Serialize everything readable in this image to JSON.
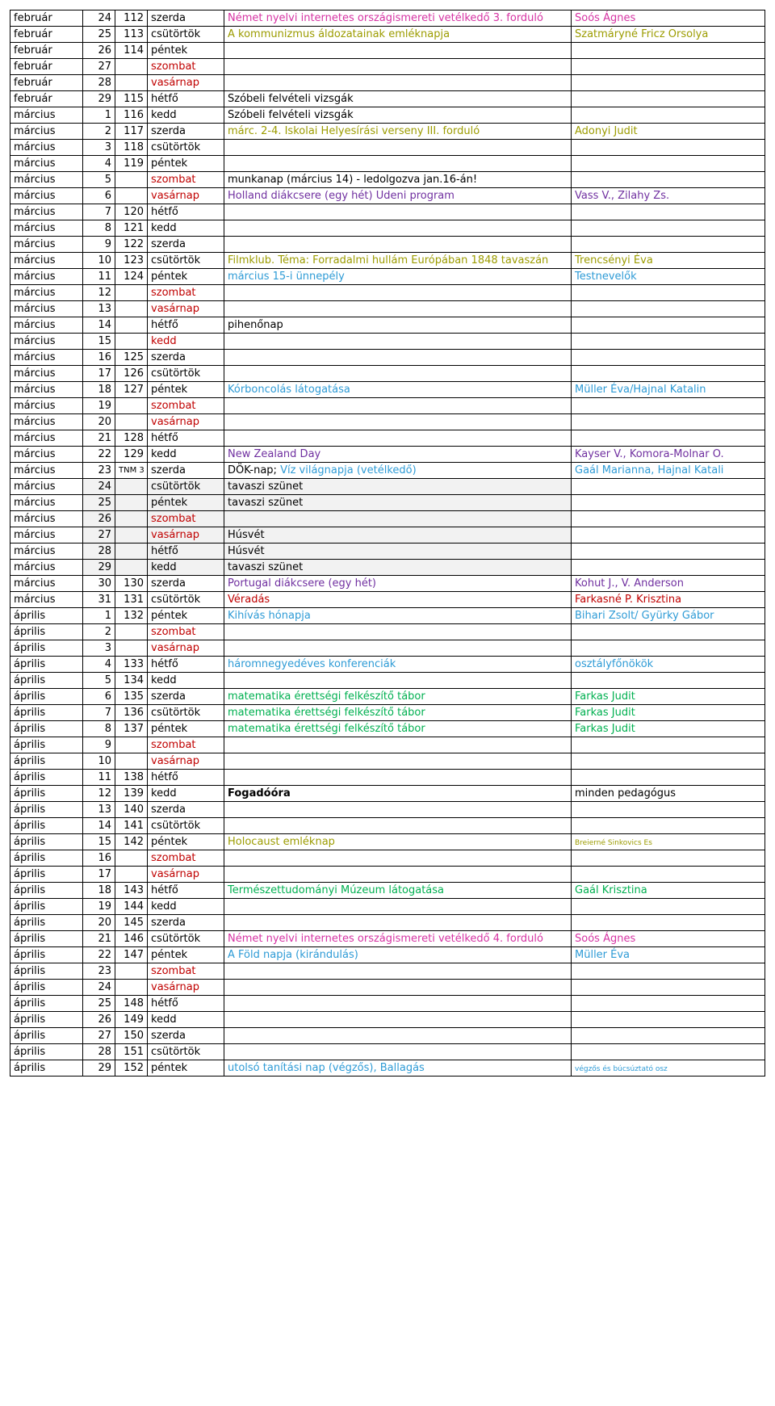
{
  "rows": [
    {
      "month": "február",
      "day": "24",
      "num": "112",
      "wd": "szerda",
      "ev": [
        {
          "t": "Német nyelvi internetes országismereti vetélkedő 3. forduló",
          "c": "magenta"
        }
      ],
      "pr": [
        {
          "t": "Soós Ágnes",
          "c": "magenta"
        }
      ]
    },
    {
      "month": "február",
      "day": "25",
      "num": "113",
      "wd": "csütörtök",
      "ev": [
        {
          "t": "A kommunizmus áldozatainak emléknapja",
          "c": "olive"
        }
      ],
      "pr": [
        {
          "t": "Szatmáryné Fricz Orsolya",
          "c": "olive"
        }
      ]
    },
    {
      "month": "február",
      "day": "26",
      "num": "114",
      "wd": "péntek"
    },
    {
      "month": "február",
      "day": "27",
      "wd": "szombat",
      "wc": "red"
    },
    {
      "month": "február",
      "day": "28",
      "wd": "vasárnap",
      "wc": "red"
    },
    {
      "month": "február",
      "day": "29",
      "num": "115",
      "wd": "hétfő",
      "ev": [
        {
          "t": "Szóbeli felvételi vizsgák"
        }
      ]
    },
    {
      "month": "március",
      "day": "1",
      "num": "116",
      "wd": "kedd",
      "ev": [
        {
          "t": "Szóbeli felvételi vizsgák"
        }
      ]
    },
    {
      "month": "március",
      "day": "2",
      "num": "117",
      "wd": "szerda",
      "ev": [
        {
          "t": "márc. 2-4. Iskolai Helyesírási verseny III. forduló",
          "c": "olive"
        }
      ],
      "pr": [
        {
          "t": "Adonyi Judit",
          "c": "olive"
        }
      ]
    },
    {
      "month": "március",
      "day": "3",
      "num": "118",
      "wd": "csütörtök"
    },
    {
      "month": "március",
      "day": "4",
      "num": "119",
      "wd": "péntek"
    },
    {
      "month": "március",
      "day": "5",
      "wd": "szombat",
      "wc": "red",
      "ev": [
        {
          "t": "munkanap (március 14) - ledolgozva jan.16-án!"
        }
      ]
    },
    {
      "month": "március",
      "day": "6",
      "wd": "vasárnap",
      "wc": "red",
      "ev": [
        {
          "t": "Holland diákcsere (egy hét) Udeni program",
          "c": "purple"
        }
      ],
      "pr": [
        {
          "t": "Vass V., Zilahy Zs.",
          "c": "purple"
        }
      ]
    },
    {
      "month": "március",
      "day": "7",
      "num": "120",
      "wd": "hétfő"
    },
    {
      "month": "március",
      "day": "8",
      "num": "121",
      "wd": "kedd"
    },
    {
      "month": "március",
      "day": "9",
      "num": "122",
      "wd": "szerda"
    },
    {
      "month": "március",
      "day": "10",
      "num": "123",
      "wd": "csütörtök",
      "ev": [
        {
          "t": "Filmklub. Téma: Forradalmi hullám Európában 1848 tavaszán",
          "c": "olive"
        }
      ],
      "pr": [
        {
          "t": "Trencsényi  Éva",
          "c": "olive"
        }
      ]
    },
    {
      "month": "március",
      "day": "11",
      "num": "124",
      "wd": "péntek",
      "ev": [
        {
          "t": "március 15-i ünnepély",
          "c": "blue"
        }
      ],
      "pr": [
        {
          "t": "Testnevelők",
          "c": "blue"
        }
      ]
    },
    {
      "month": "március",
      "day": "12",
      "wd": "szombat",
      "wc": "red"
    },
    {
      "month": "március",
      "day": "13",
      "wd": "vasárnap",
      "wc": "red"
    },
    {
      "month": "március",
      "day": "14",
      "wd": "hétfő",
      "ev": [
        {
          "t": "pihenőnap"
        }
      ]
    },
    {
      "month": "március",
      "day": "15",
      "wd": "kedd",
      "wc": "red"
    },
    {
      "month": "március",
      "day": "16",
      "num": "125",
      "wd": "szerda"
    },
    {
      "month": "március",
      "day": "17",
      "num": "126",
      "wd": "csütörtök"
    },
    {
      "month": "március",
      "day": "18",
      "num": "127",
      "wd": "péntek",
      "ev": [
        {
          "t": "Kórboncolás látogatása",
          "c": "blue"
        }
      ],
      "pr": [
        {
          "t": "Müller Éva/Hajnal Katalin",
          "c": "blue"
        }
      ]
    },
    {
      "month": "március",
      "day": "19",
      "wd": "szombat",
      "wc": "red"
    },
    {
      "month": "március",
      "day": "20",
      "wd": "vasárnap",
      "wc": "red"
    },
    {
      "month": "március",
      "day": "21",
      "num": "128",
      "wd": "hétfő"
    },
    {
      "month": "március",
      "day": "22",
      "num": "129",
      "wd": "kedd",
      "ev": [
        {
          "t": "New Zealand Day",
          "c": "purple"
        }
      ],
      "pr": [
        {
          "t": "Kayser V., Komora-Molnar O.",
          "c": "purple"
        }
      ]
    },
    {
      "month": "március",
      "day": "23",
      "numText": "TNM 3",
      "wd": "szerda",
      "ev": [
        {
          "t": "DÖK-nap; "
        },
        {
          "t": "Víz világnapja (vetélkedő)",
          "c": "blue"
        }
      ],
      "pr": [
        {
          "t": "Gaál Marianna, Hajnal Katali",
          "c": "blue"
        }
      ]
    },
    {
      "month": "március",
      "day": "24",
      "wd": "csütörtök",
      "ev": [
        {
          "t": "tavaszi szünet"
        }
      ],
      "shade": true
    },
    {
      "month": "március",
      "day": "25",
      "wd": "péntek",
      "ev": [
        {
          "t": "tavaszi szünet"
        }
      ],
      "shade": true
    },
    {
      "month": "március",
      "day": "26",
      "wd": "szombat",
      "wc": "red",
      "shade": true
    },
    {
      "month": "március",
      "day": "27",
      "wd": "vasárnap",
      "wc": "red",
      "ev": [
        {
          "t": "Húsvét"
        }
      ],
      "shade": true
    },
    {
      "month": "március",
      "day": "28",
      "wd": "hétfő",
      "ev": [
        {
          "t": "Húsvét"
        }
      ],
      "shade": true
    },
    {
      "month": "március",
      "day": "29",
      "wd": "kedd",
      "ev": [
        {
          "t": "tavaszi szünet"
        }
      ],
      "shade": true
    },
    {
      "month": "március",
      "day": "30",
      "num": "130",
      "wd": "szerda",
      "ev": [
        {
          "t": "Portugal diákcsere (egy hét)",
          "c": "purple"
        }
      ],
      "pr": [
        {
          "t": "Kohut J., V. Anderson",
          "c": "purple"
        }
      ]
    },
    {
      "month": "március",
      "day": "31",
      "num": "131",
      "wd": "csütörtök",
      "ev": [
        {
          "t": "Véradás",
          "c": "red"
        }
      ],
      "pr": [
        {
          "t": "Farkasné P. Krisztina",
          "c": "red"
        }
      ]
    },
    {
      "month": "április",
      "day": "1",
      "num": "132",
      "wd": "péntek",
      "ev": [
        {
          "t": "Kihívás hónapja",
          "c": "blue"
        }
      ],
      "pr": [
        {
          "t": "Bihari Zsolt/ Gyürky Gábor",
          "c": "blue"
        }
      ]
    },
    {
      "month": "április",
      "day": "2",
      "wd": "szombat",
      "wc": "red"
    },
    {
      "month": "április",
      "day": "3",
      "wd": "vasárnap",
      "wc": "red"
    },
    {
      "month": "április",
      "day": "4",
      "num": "133",
      "wd": "hétfő",
      "ev": [
        {
          "t": "háromnegyedéves konferenciák",
          "c": "blue"
        }
      ],
      "pr": [
        {
          "t": "osztályfőnökök",
          "c": "blue"
        }
      ]
    },
    {
      "month": "április",
      "day": "5",
      "num": "134",
      "wd": "kedd"
    },
    {
      "month": "április",
      "day": "6",
      "num": "135",
      "wd": "szerda",
      "ev": [
        {
          "t": "matematika érettségi felkészítő tábor",
          "c": "green"
        }
      ],
      "pr": [
        {
          "t": "Farkas Judit",
          "c": "green"
        }
      ]
    },
    {
      "month": "április",
      "day": "7",
      "num": "136",
      "wd": "csütörtök",
      "ev": [
        {
          "t": "matematika érettségi felkészítő tábor",
          "c": "green"
        }
      ],
      "pr": [
        {
          "t": "Farkas Judit",
          "c": "green"
        }
      ]
    },
    {
      "month": "április",
      "day": "8",
      "num": "137",
      "wd": "péntek",
      "ev": [
        {
          "t": "matematika érettségi felkészítő tábor",
          "c": "green"
        }
      ],
      "pr": [
        {
          "t": "Farkas Judit",
          "c": "green"
        }
      ]
    },
    {
      "month": "április",
      "day": "9",
      "wd": "szombat",
      "wc": "red"
    },
    {
      "month": "április",
      "day": "10",
      "wd": "vasárnap",
      "wc": "red"
    },
    {
      "month": "április",
      "day": "11",
      "num": "138",
      "wd": "hétfő"
    },
    {
      "month": "április",
      "day": "12",
      "num": "139",
      "wd": "kedd",
      "ev": [
        {
          "t": "Fogadóóra",
          "c": "bold"
        }
      ],
      "pr": [
        {
          "t": "minden pedagógus"
        }
      ]
    },
    {
      "month": "április",
      "day": "13",
      "num": "140",
      "wd": "szerda"
    },
    {
      "month": "április",
      "day": "14",
      "num": "141",
      "wd": "csütörtök"
    },
    {
      "month": "április",
      "day": "15",
      "num": "142",
      "wd": "péntek",
      "ev": [
        {
          "t": "Holocaust emléknap",
          "c": "olive"
        }
      ],
      "pr": [
        {
          "t": "Breierné Sinkovics Es",
          "c": "olive",
          "sz": "tiny"
        }
      ]
    },
    {
      "month": "április",
      "day": "16",
      "wd": "szombat",
      "wc": "red"
    },
    {
      "month": "április",
      "day": "17",
      "wd": "vasárnap",
      "wc": "red"
    },
    {
      "month": "április",
      "day": "18",
      "num": "143",
      "wd": "hétfő",
      "ev": [
        {
          "t": "Természettudományi Múzeum látogatása",
          "c": "green"
        }
      ],
      "pr": [
        {
          "t": "Gaál Krisztina",
          "c": "green"
        }
      ]
    },
    {
      "month": "április",
      "day": "19",
      "num": "144",
      "wd": "kedd"
    },
    {
      "month": "április",
      "day": "20",
      "num": "145",
      "wd": "szerda"
    },
    {
      "month": "április",
      "day": "21",
      "num": "146",
      "wd": "csütörtök",
      "ev": [
        {
          "t": "Német nyelvi internetes országismereti vetélkedő 4. forduló",
          "c": "magenta"
        }
      ],
      "pr": [
        {
          "t": "Soós Ágnes",
          "c": "magenta"
        }
      ]
    },
    {
      "month": "április",
      "day": "22",
      "num": "147",
      "wd": "péntek",
      "ev": [
        {
          "t": "A Föld napja (kirándulás)",
          "c": "blue"
        }
      ],
      "pr": [
        {
          "t": "Müller Éva",
          "c": "blue"
        }
      ]
    },
    {
      "month": "április",
      "day": "23",
      "wd": "szombat",
      "wc": "red"
    },
    {
      "month": "április",
      "day": "24",
      "wd": "vasárnap",
      "wc": "red"
    },
    {
      "month": "április",
      "day": "25",
      "num": "148",
      "wd": "hétfő"
    },
    {
      "month": "április",
      "day": "26",
      "num": "149",
      "wd": "kedd"
    },
    {
      "month": "április",
      "day": "27",
      "num": "150",
      "wd": "szerda"
    },
    {
      "month": "április",
      "day": "28",
      "num": "151",
      "wd": "csütörtök"
    },
    {
      "month": "április",
      "day": "29",
      "num": "152",
      "wd": "péntek",
      "ev": [
        {
          "t": "utolsó tanítási nap (végzős), Ballagás",
          "c": "blue"
        }
      ],
      "pr": [
        {
          "t": "végzős és búcsúztató osz",
          "c": "blue",
          "sz": "tiny"
        }
      ]
    }
  ]
}
